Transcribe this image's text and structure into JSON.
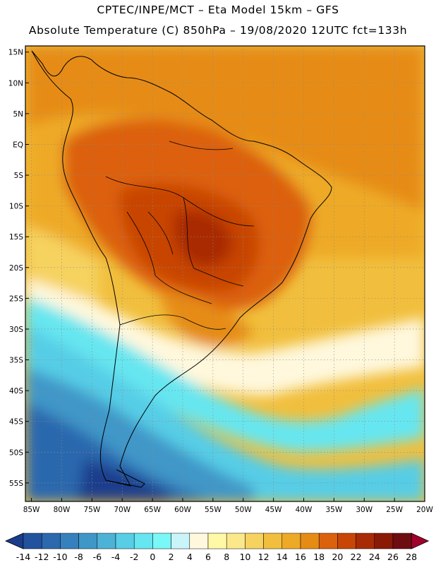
{
  "header": {
    "line1": "CPTEC/INPE/MCT –  Eta Model 15km – GFS",
    "line2": "Absolute Temperature (C) 850hPa – 19/08/2020 12UTC fct=133h"
  },
  "map": {
    "lat_labels": [
      "15N",
      "10N",
      "5N",
      "EQ",
      "5S",
      "10S",
      "15S",
      "20S",
      "25S",
      "30S",
      "35S",
      "40S",
      "45S",
      "50S",
      "55S"
    ],
    "lon_labels": [
      "85W",
      "80W",
      "75W",
      "70W",
      "65W",
      "60W",
      "55W",
      "50W",
      "45W",
      "40W",
      "35W",
      "30W",
      "25W",
      "20W"
    ],
    "extent": {
      "lon_min": -86,
      "lon_max": -20,
      "lat_min": -58,
      "lat_max": 16
    }
  },
  "colorbar": {
    "levels": [
      "-14",
      "-12",
      "-10",
      "-8",
      "-6",
      "-4",
      "-2",
      "0",
      "2",
      "4",
      "6",
      "8",
      "10",
      "12",
      "14",
      "16",
      "18",
      "20",
      "22",
      "24",
      "26",
      "28"
    ],
    "colors": [
      "#1a3c8c",
      "#22529e",
      "#2b68ae",
      "#3681bd",
      "#3f97c8",
      "#4cb2d6",
      "#57cde6",
      "#66e6f0",
      "#7af7f7",
      "#c9f5fa",
      "#fff8dd",
      "#fff8a6",
      "#fbe88a",
      "#f6d25f",
      "#f1bf3d",
      "#eeaa26",
      "#e68c15",
      "#dc610c",
      "#c84506",
      "#a92b05",
      "#8a1906",
      "#6f0c12",
      "#a0002b"
    ]
  }
}
